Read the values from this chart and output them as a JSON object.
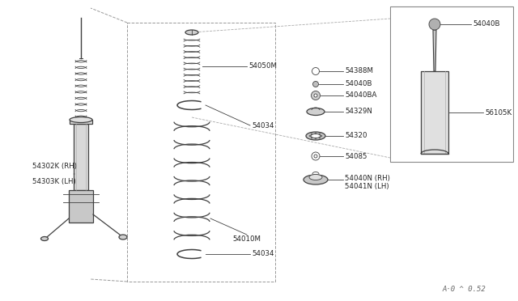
{
  "bg_color": "white",
  "line_color": "#404040",
  "text_color": "#222222",
  "part_labels": {
    "54302K_RH": "54302K (RH)",
    "54303K_LH": "54303K (LH)",
    "54050M": "54050M",
    "54034_top": "54034",
    "54034_bot": "54034",
    "54010M": "54010M",
    "54388M": "54388M",
    "54040B": "54040B",
    "54040BA": "54040BA",
    "54329N": "54329N",
    "54320": "54320",
    "54085": "54085",
    "54040N_RH": "54040N (RH)",
    "54041N_LH": "54041N (LH)",
    "54040B_inset": "54040B",
    "56105K": "56105K"
  },
  "watermark": "A·0 ˆ0.52"
}
